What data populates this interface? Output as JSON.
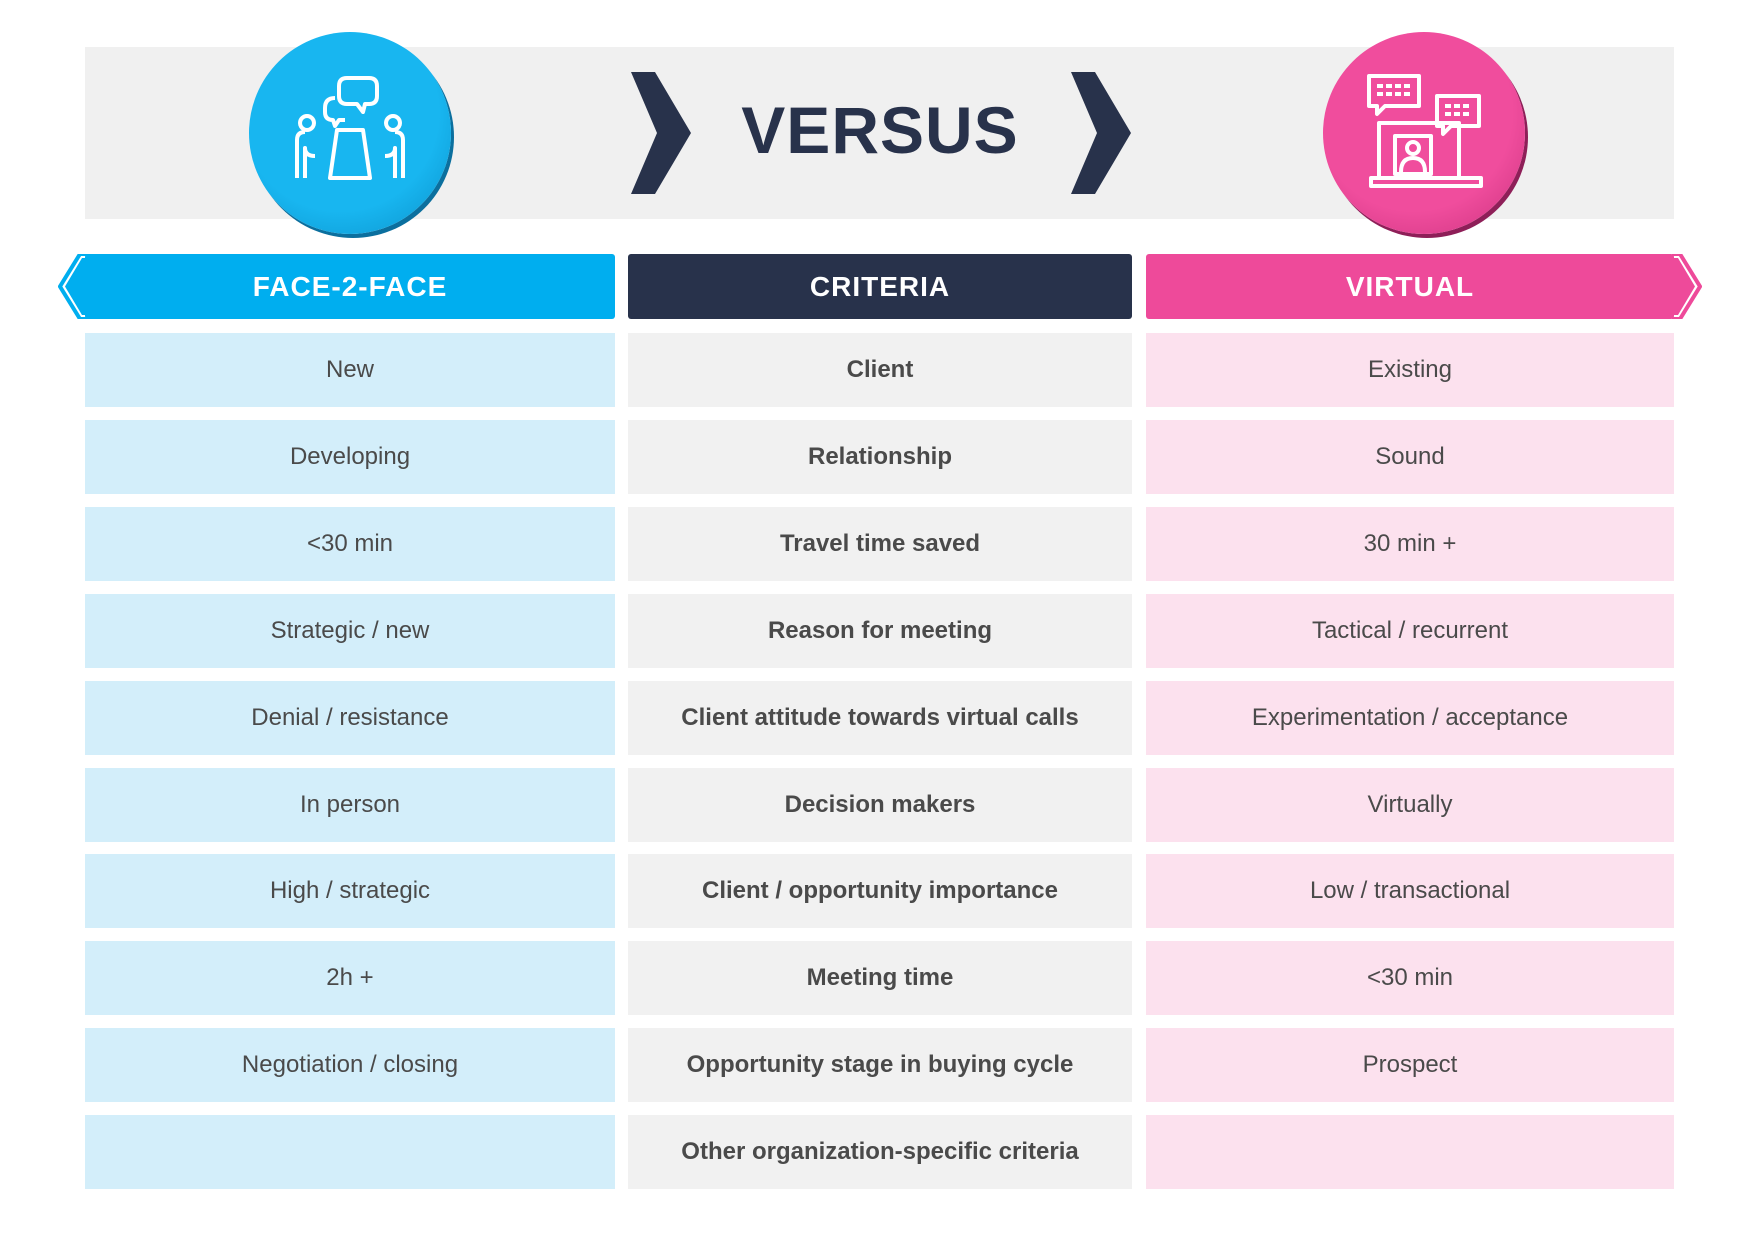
{
  "title": "VERSUS",
  "icons": {
    "left": "meeting-table-people-icon",
    "right": "laptop-video-call-icon"
  },
  "colors": {
    "face2face": "#00aeef",
    "criteria": "#28324b",
    "virtual": "#ee4a9a"
  },
  "headers": {
    "left": "FACE-2-FACE",
    "middle": "CRITERIA",
    "right": "VIRTUAL"
  },
  "rows": [
    {
      "left": "New",
      "criteria": "Client",
      "right": "Existing"
    },
    {
      "left": "Developing",
      "criteria": "Relationship",
      "right": "Sound"
    },
    {
      "left": "<30 min",
      "criteria": "Travel time saved",
      "right": "30 min +"
    },
    {
      "left": "Strategic / new",
      "criteria": "Reason for meeting",
      "right": "Tactical / recurrent"
    },
    {
      "left": "Denial / resistance",
      "criteria": "Client attitude towards virtual calls",
      "right": "Experimentation / acceptance"
    },
    {
      "left": "In person",
      "criteria": "Decision makers",
      "right": "Virtually"
    },
    {
      "left": "High / strategic",
      "criteria": "Client / opportunity importance",
      "right": "Low / transactional"
    },
    {
      "left": "2h +",
      "criteria": "Meeting time",
      "right": "<30 min"
    },
    {
      "left": "Negotiation / closing",
      "criteria": "Opportunity stage in buying cycle",
      "right": "Prospect"
    },
    {
      "left": "",
      "criteria": "Other organization-specific criteria",
      "right": ""
    }
  ]
}
